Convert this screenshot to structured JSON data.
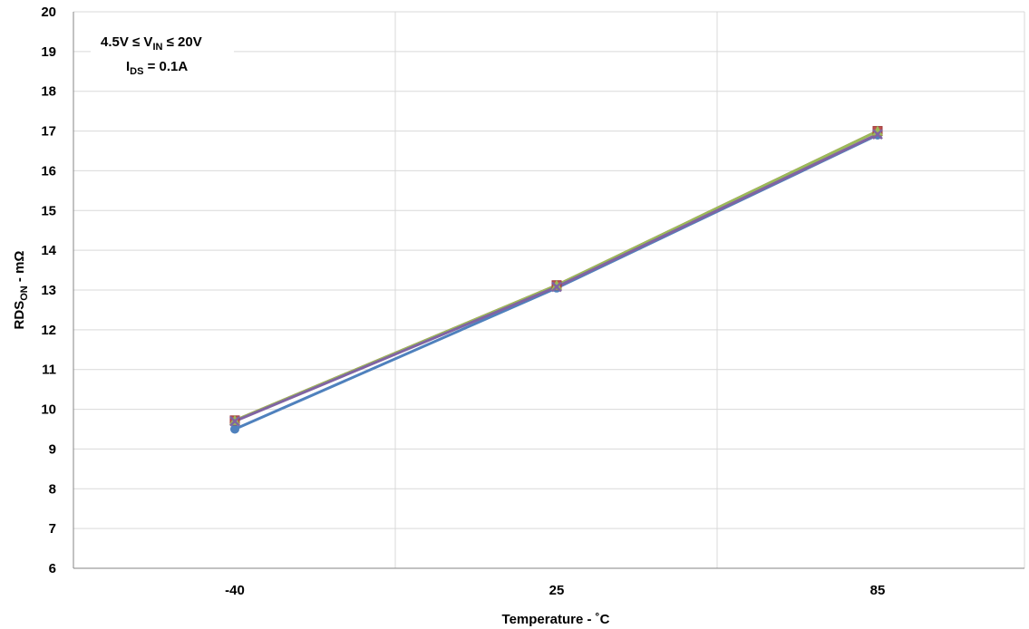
{
  "chart_data": {
    "type": "line",
    "categories": [
      "-40",
      "25",
      "85"
    ],
    "x": [
      -40,
      25,
      85
    ],
    "ylim": [
      6,
      20
    ],
    "yticks": [
      6,
      7,
      8,
      9,
      10,
      11,
      12,
      13,
      14,
      15,
      16,
      17,
      18,
      19,
      20
    ],
    "grid": true,
    "xlabel": "Temperature - ˚C",
    "ylabel": {
      "main": "RDS",
      "sub": "ON",
      "rest": " - mΩ"
    },
    "annotation": {
      "line1": {
        "pre": "4.5V ≤ V",
        "sub": "IN",
        "post": " ≤ 20V"
      },
      "line2": {
        "pre": "I",
        "sub": "DS",
        "post": " = 0.1A"
      }
    },
    "series": [
      {
        "values": [
          9.5,
          13.05,
          16.9
        ],
        "color": "#4f81bd",
        "marker": "circle"
      },
      {
        "values": [
          9.72,
          13.12,
          17.0
        ],
        "color": "#c0504d",
        "marker": "square"
      },
      {
        "values": [
          9.72,
          13.12,
          17.0
        ],
        "color": "#9bbb59",
        "marker": "triangle"
      },
      {
        "values": [
          9.7,
          13.08,
          16.92
        ],
        "color": "#8064a2",
        "marker": "x"
      }
    ]
  }
}
